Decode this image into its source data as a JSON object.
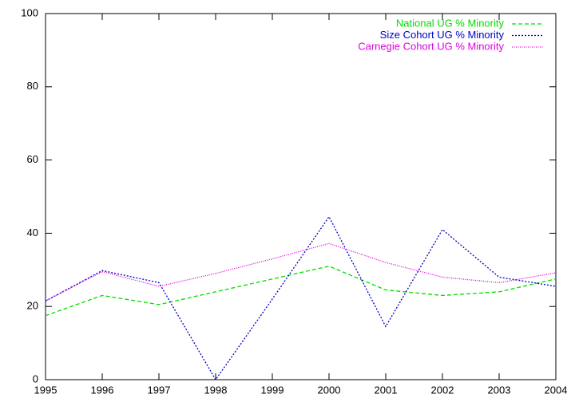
{
  "chart_data": {
    "type": "line",
    "x": [
      1995,
      1996,
      1997,
      1998,
      1999,
      2000,
      2001,
      2002,
      2003,
      2004
    ],
    "series": [
      {
        "name": "National UG % Minority",
        "color": "#00dd00",
        "values": [
          17.5,
          23,
          20.5,
          24,
          27.5,
          31,
          24.5,
          23,
          24,
          27.5
        ]
      },
      {
        "name": "Size Cohort UG % Minority",
        "color": "#0000c8",
        "values": [
          21.5,
          29.8,
          26.5,
          0,
          22,
          44.5,
          14.5,
          41,
          28,
          25.5
        ]
      },
      {
        "name": "Carnegie Cohort UG % Minority",
        "color": "#e000e0",
        "values": [
          21.5,
          29.5,
          25.5,
          29,
          33,
          37.2,
          32,
          28,
          26.5,
          29.2
        ]
      }
    ],
    "xlim": [
      1995,
      2004
    ],
    "xticks": [
      1995,
      1996,
      1997,
      1998,
      1999,
      2000,
      2001,
      2002,
      2003,
      2004
    ],
    "ylim": [
      0,
      100
    ],
    "yticks": [
      0,
      20,
      40,
      60,
      80,
      100
    ],
    "grid": false,
    "legend": "top-right"
  }
}
